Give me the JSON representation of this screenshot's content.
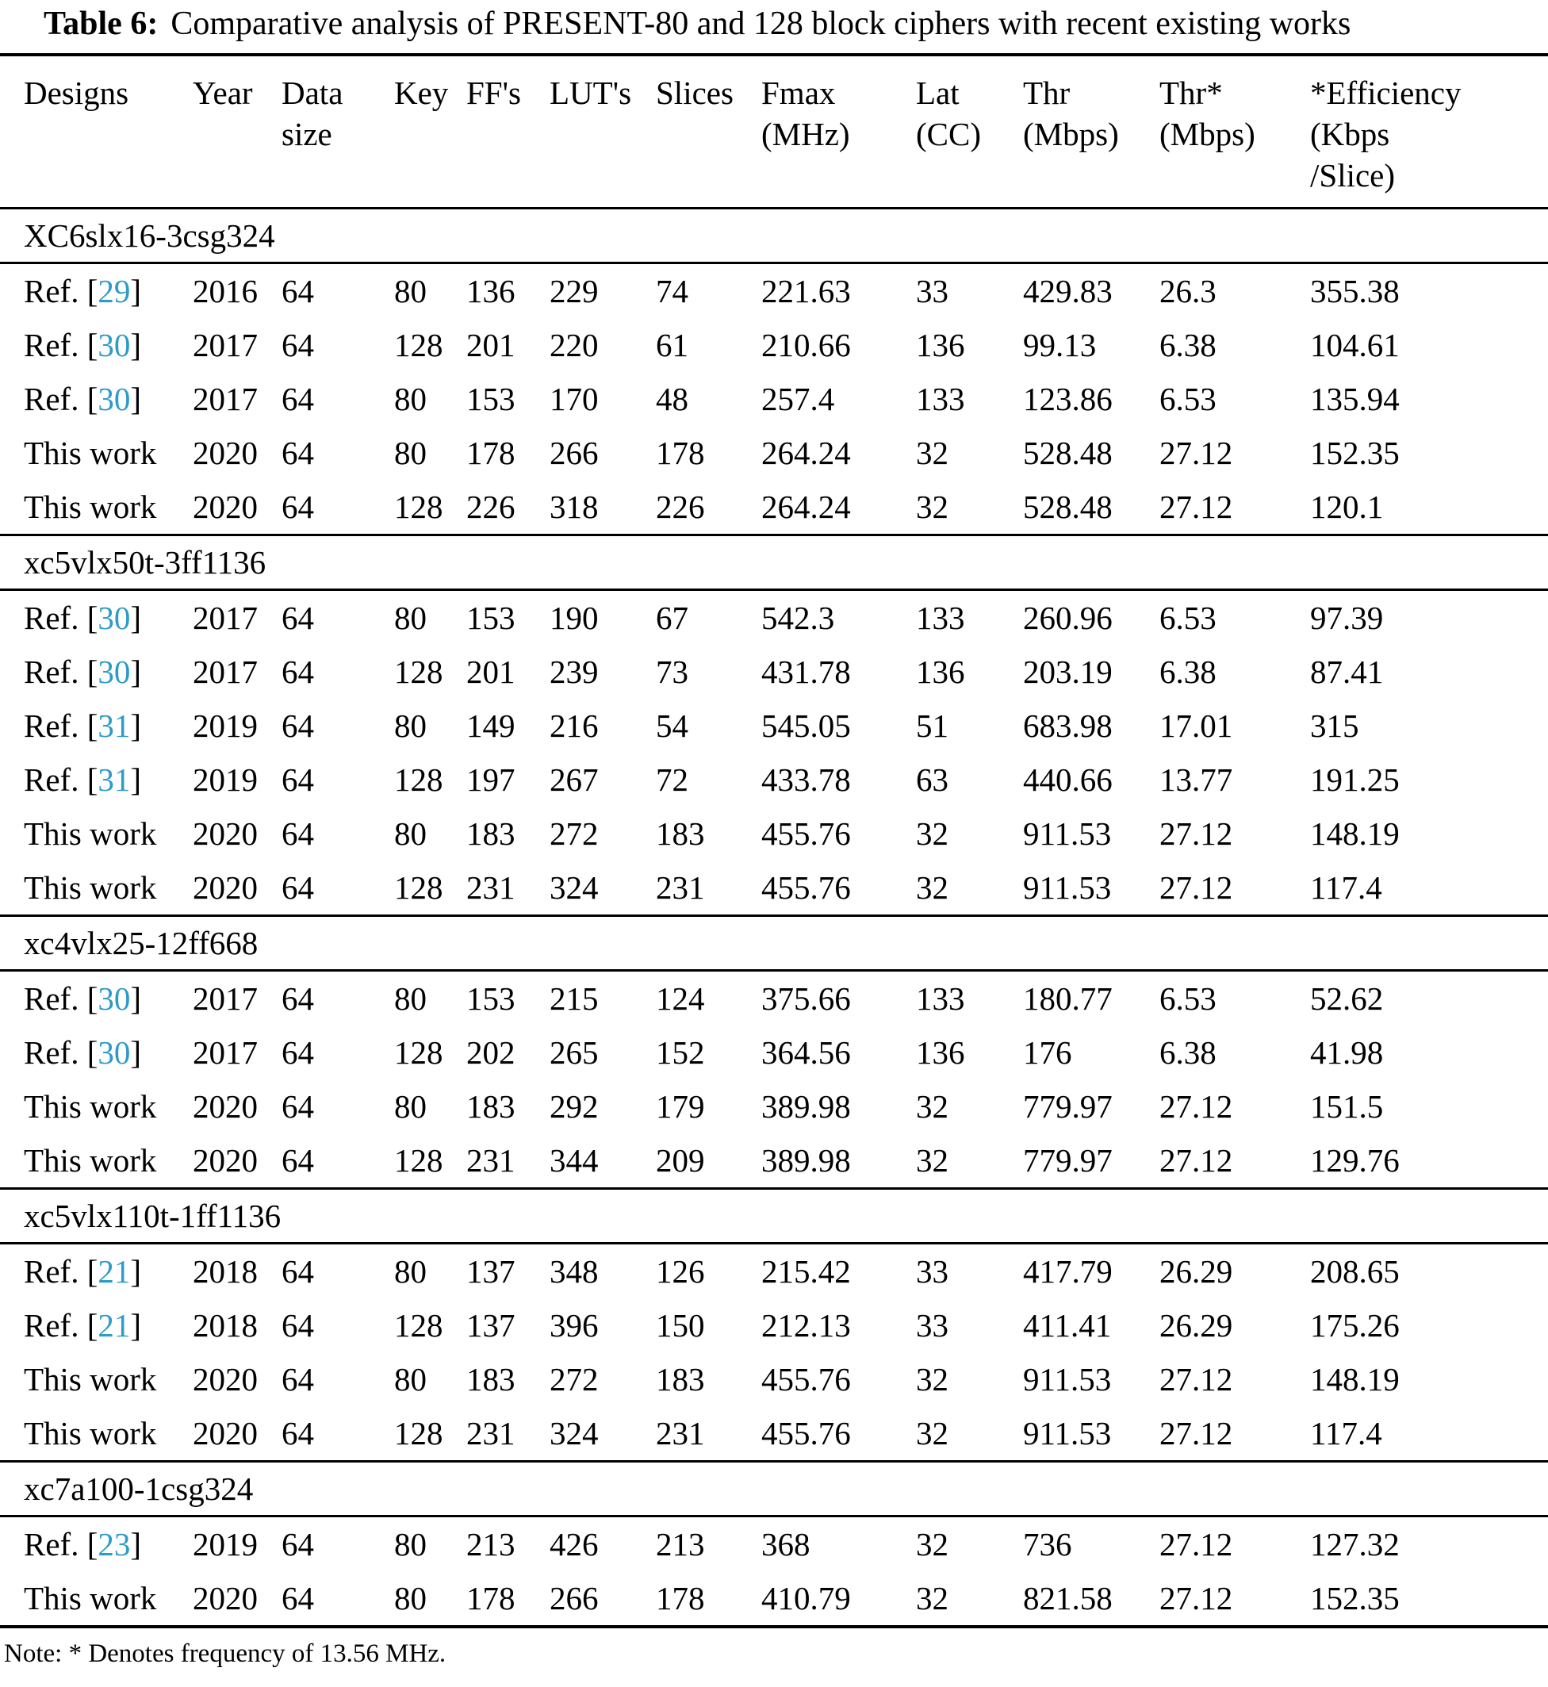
{
  "title": {
    "label": "Table 6:",
    "text": "Comparative analysis of PRESENT-80 and 128 block ciphers with recent existing works"
  },
  "colors": {
    "accent": "#2D9BC7",
    "text": "#000000",
    "rule": "#000000",
    "background": "#ffffff"
  },
  "table": {
    "columns": [
      {
        "key": "designs",
        "lines": [
          "Designs"
        ]
      },
      {
        "key": "year",
        "lines": [
          "Year"
        ]
      },
      {
        "key": "data-size",
        "lines": [
          "Data",
          "size"
        ]
      },
      {
        "key": "key",
        "lines": [
          "Key"
        ]
      },
      {
        "key": "ffs",
        "lines": [
          "FF's"
        ]
      },
      {
        "key": "luts",
        "lines": [
          "LUT's"
        ]
      },
      {
        "key": "slices",
        "lines": [
          "Slices"
        ]
      },
      {
        "key": "fmax",
        "lines": [
          "Fmax",
          "(MHz)"
        ]
      },
      {
        "key": "lat",
        "lines": [
          "Lat",
          "(CC)"
        ]
      },
      {
        "key": "thr",
        "lines": [
          "Thr",
          "(Mbps)"
        ]
      },
      {
        "key": "thr-star",
        "lines": [
          "Thr*",
          "(Mbps)"
        ]
      },
      {
        "key": "efficiency",
        "lines": [
          "*Efficiency",
          "(Kbps",
          "/Slice)"
        ]
      }
    ],
    "sections": [
      {
        "device": "XC6slx16-3csg324",
        "rows": [
          {
            "design": {
              "prefix": "Ref. [",
              "ref": "29",
              "suffix": "]"
            },
            "values": [
              "2016",
              "64",
              "80",
              "136",
              "229",
              "74",
              "221.63",
              "33",
              "429.83",
              "26.3",
              "355.38"
            ]
          },
          {
            "design": {
              "prefix": "Ref. [",
              "ref": "30",
              "suffix": "]"
            },
            "values": [
              "2017",
              "64",
              "128",
              "201",
              "220",
              "61",
              "210.66",
              "136",
              "99.13",
              "6.38",
              "104.61"
            ]
          },
          {
            "design": {
              "prefix": "Ref. [",
              "ref": "30",
              "suffix": "]"
            },
            "values": [
              "2017",
              "64",
              "80",
              "153",
              "170",
              "48",
              "257.4",
              "133",
              "123.86",
              "6.53",
              "135.94"
            ]
          },
          {
            "design": {
              "text": "This work"
            },
            "values": [
              "2020",
              "64",
              "80",
              "178",
              "266",
              "178",
              "264.24",
              "32",
              "528.48",
              "27.12",
              "152.35"
            ]
          },
          {
            "design": {
              "text": "This work"
            },
            "values": [
              "2020",
              "64",
              "128",
              "226",
              "318",
              "226",
              "264.24",
              "32",
              "528.48",
              "27.12",
              "120.1"
            ]
          }
        ]
      },
      {
        "device": "xc5vlx50t-3ff1136",
        "rows": [
          {
            "design": {
              "prefix": "Ref. [",
              "ref": "30",
              "suffix": "]"
            },
            "values": [
              "2017",
              "64",
              "80",
              "153",
              "190",
              "67",
              "542.3",
              "133",
              "260.96",
              "6.53",
              "97.39"
            ]
          },
          {
            "design": {
              "prefix": "Ref. [",
              "ref": "30",
              "suffix": "]"
            },
            "values": [
              "2017",
              "64",
              "128",
              "201",
              "239",
              "73",
              "431.78",
              "136",
              "203.19",
              "6.38",
              "87.41"
            ]
          },
          {
            "design": {
              "prefix": "Ref. [",
              "ref": "31",
              "suffix": "]"
            },
            "values": [
              "2019",
              "64",
              "80",
              "149",
              "216",
              "54",
              "545.05",
              "51",
              "683.98",
              "17.01",
              "315"
            ]
          },
          {
            "design": {
              "prefix": "Ref. [",
              "ref": "31",
              "suffix": "]"
            },
            "values": [
              "2019",
              "64",
              "128",
              "197",
              "267",
              "72",
              "433.78",
              "63",
              "440.66",
              "13.77",
              "191.25"
            ]
          },
          {
            "design": {
              "text": "This work"
            },
            "values": [
              "2020",
              "64",
              "80",
              "183",
              "272",
              "183",
              "455.76",
              "32",
              "911.53",
              "27.12",
              "148.19"
            ]
          },
          {
            "design": {
              "text": "This work"
            },
            "values": [
              "2020",
              "64",
              "128",
              "231",
              "324",
              "231",
              "455.76",
              "32",
              "911.53",
              "27.12",
              "117.4"
            ]
          }
        ]
      },
      {
        "device": "xc4vlx25-12ff668",
        "rows": [
          {
            "design": {
              "prefix": "Ref. [",
              "ref": "30",
              "suffix": "]"
            },
            "values": [
              "2017",
              "64",
              "80",
              "153",
              "215",
              "124",
              "375.66",
              "133",
              "180.77",
              "6.53",
              "52.62"
            ]
          },
          {
            "design": {
              "prefix": "Ref. [",
              "ref": "30",
              "suffix": "]"
            },
            "values": [
              "2017",
              "64",
              "128",
              "202",
              "265",
              "152",
              "364.56",
              "136",
              "176",
              "6.38",
              "41.98"
            ]
          },
          {
            "design": {
              "text": "This work"
            },
            "values": [
              "2020",
              "64",
              "80",
              "183",
              "292",
              "179",
              "389.98",
              "32",
              "779.97",
              "27.12",
              "151.5"
            ]
          },
          {
            "design": {
              "text": "This work"
            },
            "values": [
              "2020",
              "64",
              "128",
              "231",
              "344",
              "209",
              "389.98",
              "32",
              "779.97",
              "27.12",
              "129.76"
            ]
          }
        ]
      },
      {
        "device": "xc5vlx110t-1ff1136",
        "rows": [
          {
            "design": {
              "prefix": "Ref. [",
              "ref": "21",
              "suffix": "]"
            },
            "values": [
              "2018",
              "64",
              "80",
              "137",
              "348",
              "126",
              "215.42",
              "33",
              "417.79",
              "26.29",
              "208.65"
            ]
          },
          {
            "design": {
              "prefix": "Ref. [",
              "ref": "21",
              "suffix": "]"
            },
            "values": [
              "2018",
              "64",
              "128",
              "137",
              "396",
              "150",
              "212.13",
              "33",
              "411.41",
              "26.29",
              "175.26"
            ]
          },
          {
            "design": {
              "text": "This work"
            },
            "values": [
              "2020",
              "64",
              "80",
              "183",
              "272",
              "183",
              "455.76",
              "32",
              "911.53",
              "27.12",
              "148.19"
            ]
          },
          {
            "design": {
              "text": "This work"
            },
            "values": [
              "2020",
              "64",
              "128",
              "231",
              "324",
              "231",
              "455.76",
              "32",
              "911.53",
              "27.12",
              "117.4"
            ]
          }
        ]
      },
      {
        "device": "xc7a100-1csg324",
        "rows": [
          {
            "design": {
              "prefix": "Ref. [",
              "ref": "23",
              "suffix": "]"
            },
            "values": [
              "2019",
              "64",
              "80",
              "213",
              "426",
              "213",
              "368",
              "32",
              "736",
              "27.12",
              "127.32"
            ]
          },
          {
            "design": {
              "text": "This work"
            },
            "values": [
              "2020",
              "64",
              "80",
              "178",
              "266",
              "178",
              "410.79",
              "32",
              "821.58",
              "27.12",
              "152.35"
            ]
          }
        ]
      }
    ],
    "note": "Note: * Denotes frequency of 13.56 MHz."
  }
}
